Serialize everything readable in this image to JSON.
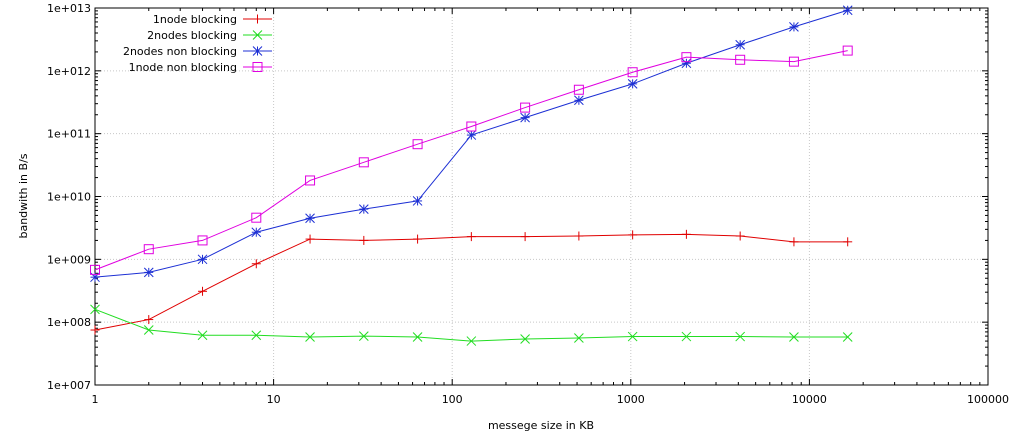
{
  "chart_data": {
    "type": "line",
    "title": "",
    "xlabel": "messege size in KB",
    "ylabel": "bandwith in B/s",
    "x_scale": "log",
    "y_scale": "log",
    "xlim": [
      1,
      100000
    ],
    "ylim": [
      10000000,
      10000000000000
    ],
    "x_tick_labels": [
      "1",
      "10",
      "100",
      "1000",
      "10000",
      "100000"
    ],
    "y_tick_labels": [
      "1e+007",
      "1e+008",
      "1e+009",
      "1e+010",
      "1e+011",
      "1e+012",
      "1e+013"
    ],
    "grid": true,
    "legend_position": "top-left",
    "x": [
      1,
      2,
      4,
      8,
      16,
      32,
      64,
      128,
      256,
      512,
      1024,
      2048,
      4096,
      8192,
      16384
    ],
    "series": [
      {
        "name": "1node blocking",
        "color": "#e00000",
        "marker": "plus",
        "values": [
          75000000,
          110000000,
          310000000,
          850000000,
          2100000000,
          2000000000,
          2100000000,
          2300000000,
          2300000000,
          2350000000,
          2450000000,
          2500000000,
          2350000000,
          1900000000,
          1900000000
        ]
      },
      {
        "name": "2nodes blocking",
        "color": "#22dd22",
        "marker": "cross",
        "values": [
          160000000,
          75000000,
          62000000,
          62000000,
          58000000,
          60000000,
          58000000,
          50000000,
          54000000,
          56000000,
          59000000,
          59000000,
          59000000,
          58000000,
          58000000
        ]
      },
      {
        "name": "2nodes non blocking",
        "color": "#1c2fd4",
        "marker": "star",
        "values": [
          520000000,
          620000000,
          1000000000,
          2700000000,
          4500000000,
          6300000000,
          8500000000,
          95000000000,
          180000000000,
          340000000000,
          620000000000,
          1320000000000,
          2600000000000,
          5000000000000,
          9200000000000
        ]
      },
      {
        "name": "1node non blocking",
        "color": "#e000e0",
        "marker": "square",
        "values": [
          680000000,
          1450000000,
          2000000000,
          4600000000,
          18000000000,
          35000000000,
          68000000000,
          130000000000,
          260000000000,
          500000000000,
          950000000000,
          1650000000000,
          1500000000000,
          1400000000000,
          2100000000000
        ]
      }
    ]
  }
}
